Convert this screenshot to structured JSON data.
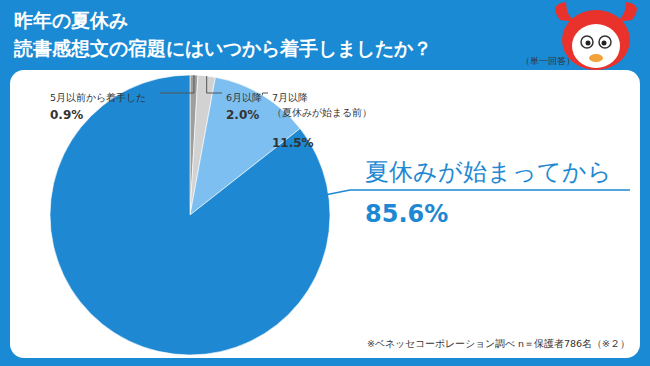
{
  "chart_data": {
    "type": "pie",
    "title": "昨年の夏休み\n読書感想文の宿題にはいつから着手しましたか？",
    "annotations": [
      "（単一回答）",
      "※ベネッセコーポレーション調べ n＝保護者786名（※２）"
    ],
    "categories": [
      "5月以前から着手した",
      "6月以降",
      "7月以降\n（夏休みが始まる前）",
      "夏休みが始まってから"
    ],
    "values": [
      0.9,
      2.0,
      11.5,
      85.6
    ],
    "value_labels": [
      "0.9%",
      "2.0%",
      "11.5%",
      "85.6%"
    ],
    "colors": [
      "#9e9e9e",
      "#d2d2d2",
      "#7dbff0",
      "#1e88d2"
    ],
    "data_labels": true
  }
}
